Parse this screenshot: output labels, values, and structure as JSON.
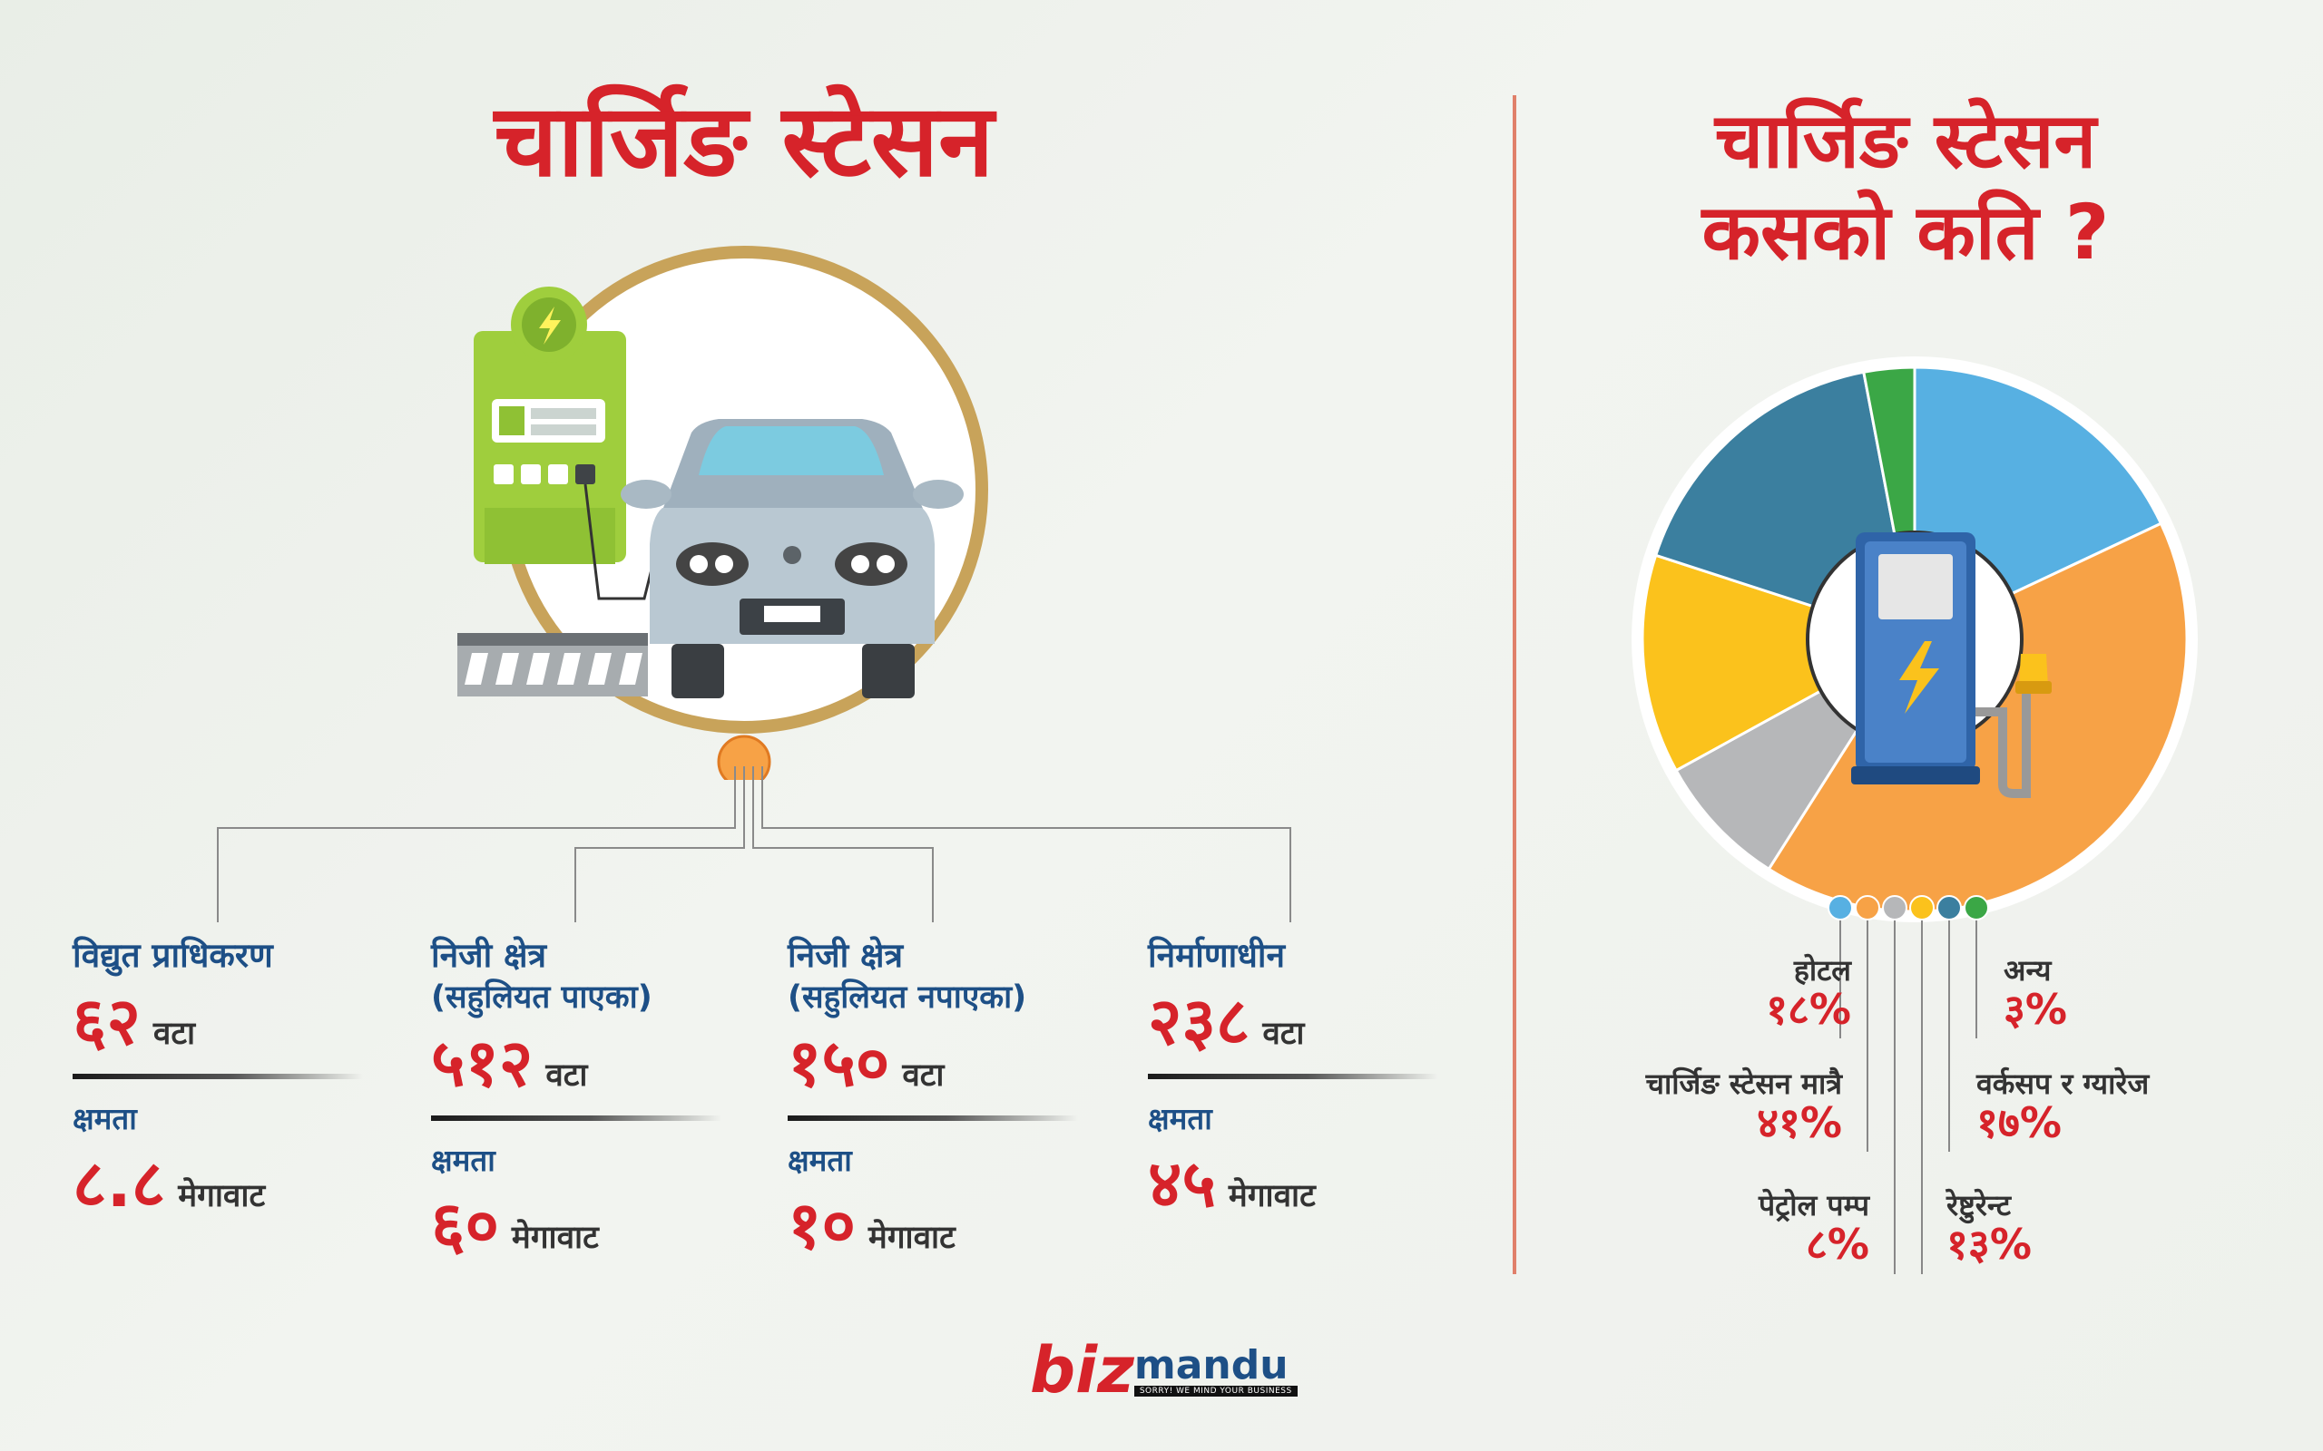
{
  "left": {
    "title": "चार्जिङ स्टेसन",
    "categories": [
      {
        "name": "विद्युत प्राधिकरण",
        "sub": "",
        "count": "६२",
        "count_unit": "वटा",
        "capacity_label": "क्षमता",
        "capacity": "८.८",
        "capacity_unit": "मेगावाट"
      },
      {
        "name": "निजी क्षेत्र",
        "sub": "(सहुलियत पाएका)",
        "count": "५१२",
        "count_unit": "वटा",
        "capacity_label": "क्षमता",
        "capacity": "६०",
        "capacity_unit": "मेगावाट"
      },
      {
        "name": "निजी क्षेत्र",
        "sub": "(सहुलियत नपाएका)",
        "count": "१५०",
        "count_unit": "वटा",
        "capacity_label": "क्षमता",
        "capacity": "१०",
        "capacity_unit": "मेगावाट"
      },
      {
        "name": "निर्माणाधीन",
        "sub": "",
        "count": "२३८",
        "count_unit": "वटा",
        "capacity_label": "क्षमता",
        "capacity": "४५",
        "capacity_unit": "मेगावाट"
      }
    ]
  },
  "right": {
    "title_line1": "चार्जिङ स्टेसन",
    "title_line2": "कसको कति ?"
  },
  "chart_data": {
    "type": "pie",
    "title": "चार्जिङ स्टेसन कसको कति ?",
    "legend_placement": "bottom",
    "slices": [
      {
        "label": "होटल",
        "value": 18,
        "display": "१८%",
        "color": "#57b0e2"
      },
      {
        "label": "चार्जिङ स्टेसन मात्रै",
        "value": 41,
        "display": "४१%",
        "color": "#f7a246"
      },
      {
        "label": "पेट्रोल पम्प",
        "value": 8,
        "display": "८%",
        "color": "#b6b7b9"
      },
      {
        "label": "रेष्टुरेन्ट",
        "value": 13,
        "display": "१३%",
        "color": "#fbc21c"
      },
      {
        "label": "वर्कसप र ग्यारेज",
        "value": 17,
        "display": "१७%",
        "color": "#3b7f9f"
      },
      {
        "label": "अन्य",
        "value": 3,
        "display": "३%",
        "color": "#3ba746"
      }
    ]
  },
  "colors": {
    "accent_red": "#d6232a",
    "brand_blue": "#1d4f86",
    "divider": "#e0806a"
  },
  "logo": {
    "biz": "biz",
    "mandu": "mandu",
    "tagline": "SORRY! WE MIND YOUR BUSINESS"
  }
}
